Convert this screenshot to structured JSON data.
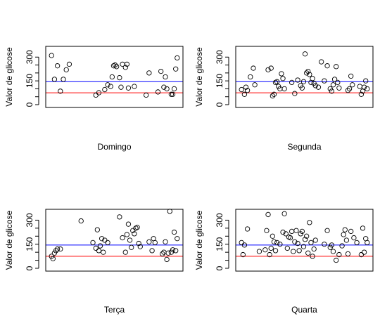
{
  "chart_data": [
    {
      "type": "scatter",
      "xlabel": "Domingo",
      "ylabel": "Valor de glicose",
      "ylim": [
        0,
        350
      ],
      "yticks": [
        0,
        150,
        300
      ],
      "yticks_minor": [
        50,
        100,
        200,
        250
      ],
      "hlines": [
        {
          "y": 75,
          "color": "#ff0000"
        },
        {
          "y": 145,
          "color": "#0000ff"
        }
      ],
      "points": [
        {
          "x": 1,
          "y": 310
        },
        {
          "x": 2,
          "y": 160
        },
        {
          "x": 3,
          "y": 245
        },
        {
          "x": 4,
          "y": 85
        },
        {
          "x": 5,
          "y": 160
        },
        {
          "x": 6,
          "y": 220
        },
        {
          "x": 7,
          "y": 255
        },
        {
          "x": 16,
          "y": 60
        },
        {
          "x": 17,
          "y": 75
        },
        {
          "x": 19,
          "y": 95
        },
        {
          "x": 20,
          "y": 125
        },
        {
          "x": 21,
          "y": 115
        },
        {
          "x": 21.5,
          "y": 175
        },
        {
          "x": 22,
          "y": 245
        },
        {
          "x": 22.5,
          "y": 250
        },
        {
          "x": 23,
          "y": 240
        },
        {
          "x": 24,
          "y": 170
        },
        {
          "x": 24.5,
          "y": 110
        },
        {
          "x": 25,
          "y": 255
        },
        {
          "x": 26,
          "y": 235
        },
        {
          "x": 26.5,
          "y": 255
        },
        {
          "x": 27,
          "y": 105
        },
        {
          "x": 29,
          "y": 115
        },
        {
          "x": 33,
          "y": 60
        },
        {
          "x": 34,
          "y": 200
        },
        {
          "x": 37,
          "y": 80
        },
        {
          "x": 38,
          "y": 210
        },
        {
          "x": 39,
          "y": 110
        },
        {
          "x": 39.5,
          "y": 175
        },
        {
          "x": 40,
          "y": 100
        },
        {
          "x": 41.5,
          "y": 65
        },
        {
          "x": 42,
          "y": 65
        },
        {
          "x": 42.5,
          "y": 100
        },
        {
          "x": 43,
          "y": 225
        },
        {
          "x": 43.5,
          "y": 295
        }
      ]
    },
    {
      "type": "scatter",
      "xlabel": "Segunda",
      "ylabel": "Valor de glicose",
      "ylim": [
        0,
        350
      ],
      "yticks": [
        0,
        150,
        300
      ],
      "yticks_minor": [
        50,
        100,
        200,
        250
      ],
      "hlines": [
        {
          "y": 75,
          "color": "#ff0000"
        },
        {
          "y": 145,
          "color": "#0000ff"
        }
      ],
      "points": [
        {
          "x": 1,
          "y": 95
        },
        {
          "x": 2,
          "y": 65
        },
        {
          "x": 2.5,
          "y": 110
        },
        {
          "x": 3,
          "y": 90
        },
        {
          "x": 4,
          "y": 175
        },
        {
          "x": 5,
          "y": 230
        },
        {
          "x": 5.5,
          "y": 125
        },
        {
          "x": 10,
          "y": 220
        },
        {
          "x": 11,
          "y": 230
        },
        {
          "x": 11.5,
          "y": 55
        },
        {
          "x": 12,
          "y": 65
        },
        {
          "x": 12.5,
          "y": 140
        },
        {
          "x": 13,
          "y": 145
        },
        {
          "x": 13.5,
          "y": 115
        },
        {
          "x": 14,
          "y": 100
        },
        {
          "x": 14.5,
          "y": 195
        },
        {
          "x": 15,
          "y": 165
        },
        {
          "x": 15.5,
          "y": 100
        },
        {
          "x": 18,
          "y": 140
        },
        {
          "x": 19,
          "y": 70
        },
        {
          "x": 20,
          "y": 155
        },
        {
          "x": 21,
          "y": 120
        },
        {
          "x": 21.5,
          "y": 105
        },
        {
          "x": 22,
          "y": 145
        },
        {
          "x": 22.5,
          "y": 320
        },
        {
          "x": 23,
          "y": 200
        },
        {
          "x": 23.5,
          "y": 210
        },
        {
          "x": 24,
          "y": 190
        },
        {
          "x": 24.5,
          "y": 140
        },
        {
          "x": 25,
          "y": 165
        },
        {
          "x": 25.5,
          "y": 135
        },
        {
          "x": 26,
          "y": 120
        },
        {
          "x": 27,
          "y": 110
        },
        {
          "x": 28,
          "y": 270
        },
        {
          "x": 29,
          "y": 150
        },
        {
          "x": 30,
          "y": 245
        },
        {
          "x": 31,
          "y": 100
        },
        {
          "x": 31.5,
          "y": 85
        },
        {
          "x": 32,
          "y": 125
        },
        {
          "x": 32.5,
          "y": 160
        },
        {
          "x": 33,
          "y": 240
        },
        {
          "x": 33.5,
          "y": 140
        },
        {
          "x": 34,
          "y": 105
        },
        {
          "x": 37,
          "y": 90
        },
        {
          "x": 37.5,
          "y": 100
        },
        {
          "x": 38,
          "y": 180
        },
        {
          "x": 38.5,
          "y": 125
        },
        {
          "x": 41,
          "y": 115
        },
        {
          "x": 41.5,
          "y": 65
        },
        {
          "x": 42,
          "y": 85
        },
        {
          "x": 42.5,
          "y": 110
        },
        {
          "x": 43,
          "y": 150
        },
        {
          "x": 43.5,
          "y": 100
        }
      ]
    },
    {
      "type": "scatter",
      "xlabel": "Terça",
      "ylabel": "Valor de glicose",
      "ylim": [
        0,
        350
      ],
      "yticks": [
        0,
        150,
        300
      ],
      "yticks_minor": [
        50,
        100,
        200,
        250
      ],
      "hlines": [
        {
          "y": 75,
          "color": "#ff0000"
        },
        {
          "y": 145,
          "color": "#0000ff"
        }
      ],
      "points": [
        {
          "x": 1,
          "y": 75
        },
        {
          "x": 1.5,
          "y": 60
        },
        {
          "x": 2,
          "y": 95
        },
        {
          "x": 2.5,
          "y": 110
        },
        {
          "x": 3,
          "y": 120
        },
        {
          "x": 4,
          "y": 120
        },
        {
          "x": 11,
          "y": 295
        },
        {
          "x": 15,
          "y": 160
        },
        {
          "x": 16,
          "y": 125
        },
        {
          "x": 16.5,
          "y": 240
        },
        {
          "x": 17,
          "y": 110
        },
        {
          "x": 17.5,
          "y": 140
        },
        {
          "x": 18,
          "y": 185
        },
        {
          "x": 18.5,
          "y": 100
        },
        {
          "x": 19,
          "y": 175
        },
        {
          "x": 20,
          "y": 160
        },
        {
          "x": 24,
          "y": 320
        },
        {
          "x": 25,
          "y": 190
        },
        {
          "x": 26,
          "y": 100
        },
        {
          "x": 26.5,
          "y": 210
        },
        {
          "x": 27,
          "y": 275
        },
        {
          "x": 27.5,
          "y": 175
        },
        {
          "x": 28,
          "y": 130
        },
        {
          "x": 28.5,
          "y": 235
        },
        {
          "x": 29,
          "y": 215
        },
        {
          "x": 29.5,
          "y": 250
        },
        {
          "x": 30,
          "y": 255
        },
        {
          "x": 30.5,
          "y": 155
        },
        {
          "x": 31,
          "y": 135
        },
        {
          "x": 34,
          "y": 165
        },
        {
          "x": 35,
          "y": 110
        },
        {
          "x": 35.5,
          "y": 185
        },
        {
          "x": 36,
          "y": 160
        },
        {
          "x": 38.5,
          "y": 90
        },
        {
          "x": 39,
          "y": 100
        },
        {
          "x": 39.5,
          "y": 165
        },
        {
          "x": 40,
          "y": 55
        },
        {
          "x": 40.5,
          "y": 95
        },
        {
          "x": 41,
          "y": 355
        },
        {
          "x": 41.5,
          "y": 100
        },
        {
          "x": 42,
          "y": 115
        },
        {
          "x": 42.5,
          "y": 225
        },
        {
          "x": 43,
          "y": 110
        },
        {
          "x": 43.5,
          "y": 185
        }
      ]
    },
    {
      "type": "scatter",
      "xlabel": "Quarta",
      "ylabel": "Valor de glicose",
      "ylim": [
        0,
        350
      ],
      "yticks": [
        0,
        150,
        300
      ],
      "yticks_minor": [
        50,
        100,
        200,
        250
      ],
      "hlines": [
        {
          "y": 75,
          "color": "#ff0000"
        },
        {
          "y": 145,
          "color": "#0000ff"
        }
      ],
      "points": [
        {
          "x": 1,
          "y": 160
        },
        {
          "x": 1.5,
          "y": 85
        },
        {
          "x": 2,
          "y": 145
        },
        {
          "x": 3,
          "y": 245
        },
        {
          "x": 7,
          "y": 105
        },
        {
          "x": 9,
          "y": 115
        },
        {
          "x": 9.5,
          "y": 235
        },
        {
          "x": 10,
          "y": 335
        },
        {
          "x": 10.5,
          "y": 85
        },
        {
          "x": 11,
          "y": 125
        },
        {
          "x": 11.5,
          "y": 200
        },
        {
          "x": 12,
          "y": 165
        },
        {
          "x": 12.5,
          "y": 110
        },
        {
          "x": 13,
          "y": 160
        },
        {
          "x": 14,
          "y": 150
        },
        {
          "x": 15,
          "y": 225
        },
        {
          "x": 15.5,
          "y": 340
        },
        {
          "x": 16,
          "y": 215
        },
        {
          "x": 16.5,
          "y": 125
        },
        {
          "x": 17,
          "y": 195
        },
        {
          "x": 17.5,
          "y": 190
        },
        {
          "x": 18,
          "y": 230
        },
        {
          "x": 18.5,
          "y": 105
        },
        {
          "x": 19,
          "y": 165
        },
        {
          "x": 19.5,
          "y": 235
        },
        {
          "x": 20,
          "y": 155
        },
        {
          "x": 20.5,
          "y": 110
        },
        {
          "x": 21,
          "y": 215
        },
        {
          "x": 21.5,
          "y": 230
        },
        {
          "x": 22,
          "y": 135
        },
        {
          "x": 22.5,
          "y": 180
        },
        {
          "x": 23,
          "y": 200
        },
        {
          "x": 23.5,
          "y": 95
        },
        {
          "x": 24,
          "y": 285
        },
        {
          "x": 24.5,
          "y": 160
        },
        {
          "x": 25,
          "y": 75
        },
        {
          "x": 25.5,
          "y": 120
        },
        {
          "x": 26,
          "y": 175
        },
        {
          "x": 29,
          "y": 150
        },
        {
          "x": 30,
          "y": 235
        },
        {
          "x": 31,
          "y": 130
        },
        {
          "x": 31.5,
          "y": 145
        },
        {
          "x": 32,
          "y": 105
        },
        {
          "x": 33,
          "y": 50
        },
        {
          "x": 34,
          "y": 85
        },
        {
          "x": 35,
          "y": 140
        },
        {
          "x": 35.5,
          "y": 210
        },
        {
          "x": 36,
          "y": 240
        },
        {
          "x": 36.5,
          "y": 175
        },
        {
          "x": 37,
          "y": 90
        },
        {
          "x": 38,
          "y": 230
        },
        {
          "x": 39,
          "y": 190
        },
        {
          "x": 40,
          "y": 160
        },
        {
          "x": 41.5,
          "y": 85
        },
        {
          "x": 42,
          "y": 250
        },
        {
          "x": 42.5,
          "y": 100
        },
        {
          "x": 43,
          "y": 185
        },
        {
          "x": 43.5,
          "y": 160
        }
      ]
    }
  ]
}
